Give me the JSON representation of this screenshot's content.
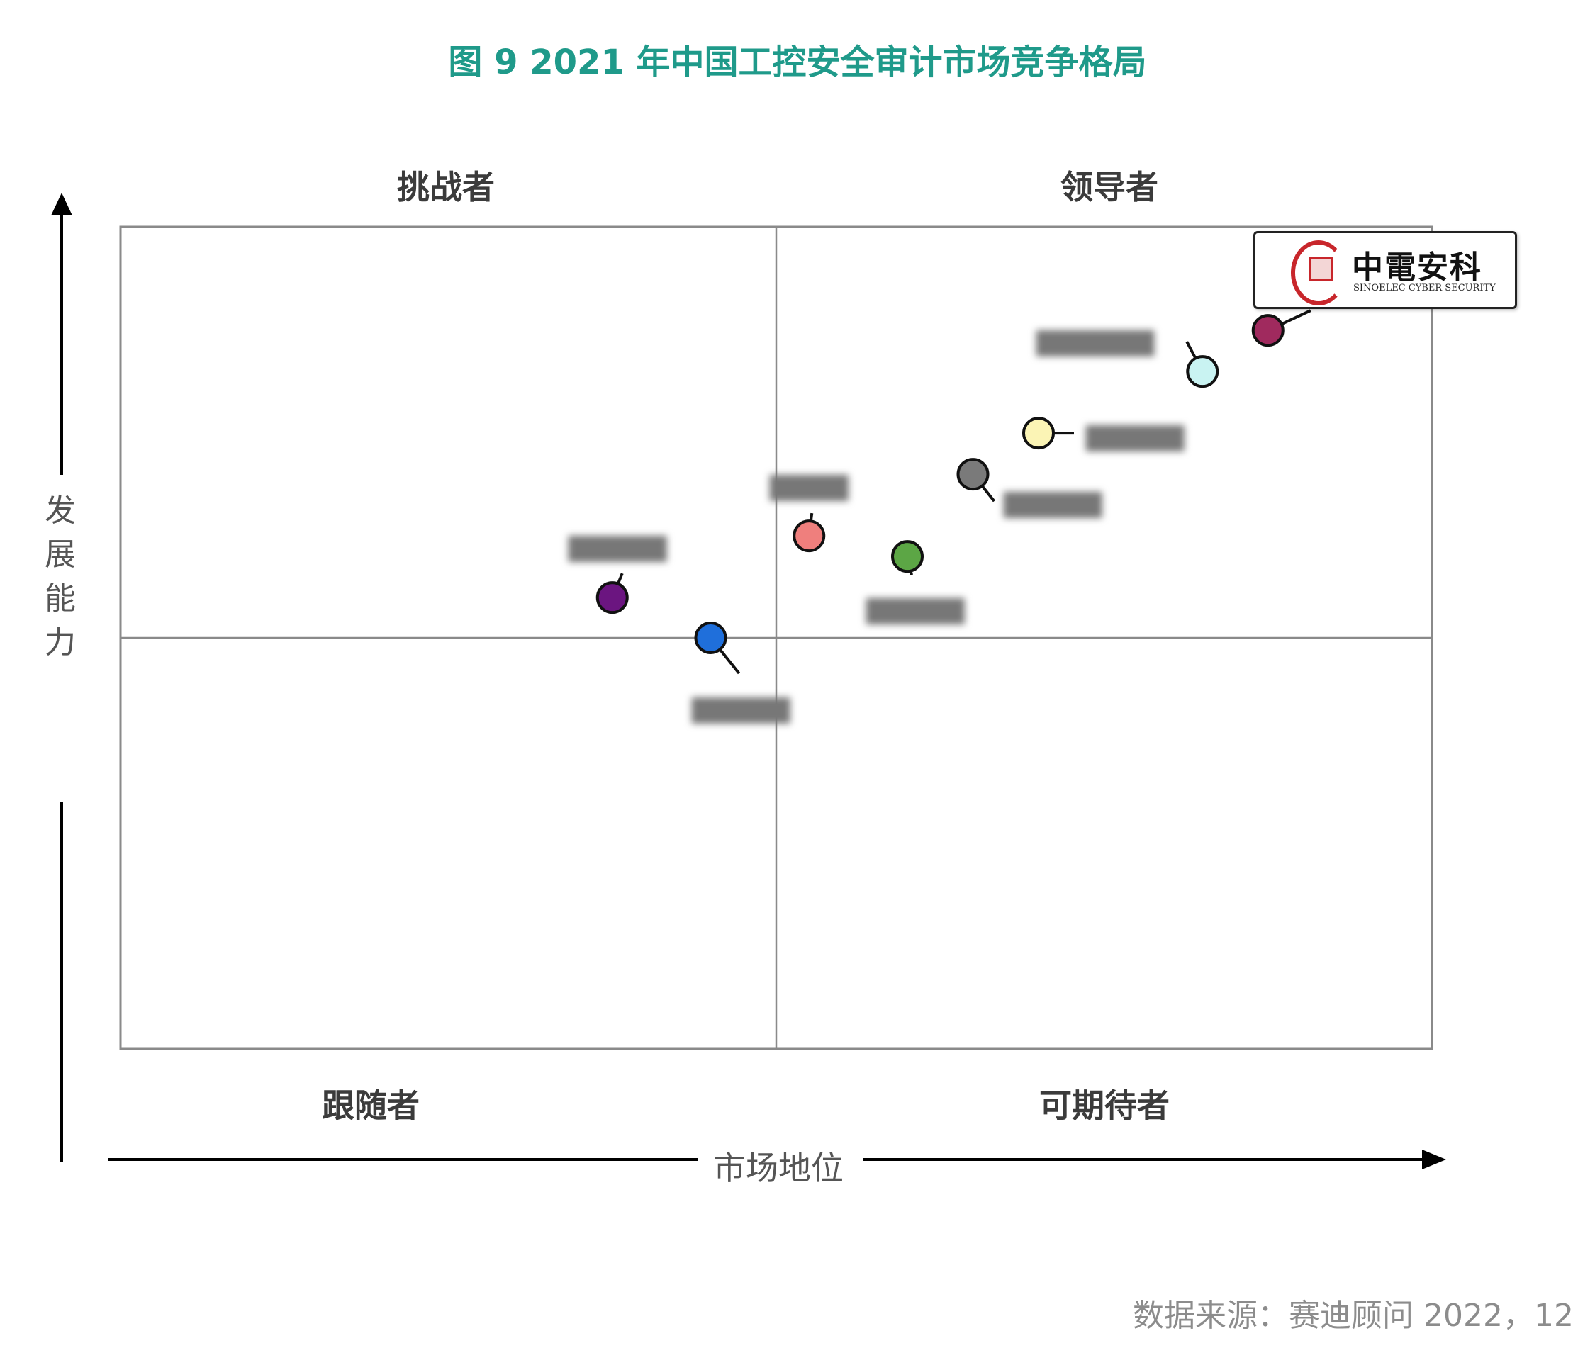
{
  "title": "图 9  2021 年中国工控安全审计市场竞争格局",
  "quadrants": {
    "top_left": "挑战者",
    "top_right": "领导者",
    "bottom_left": "跟随者",
    "bottom_right": "可期待者"
  },
  "y_axis_label": [
    "发",
    "展",
    "能",
    "力"
  ],
  "x_axis_label": "市场地位",
  "source": "数据来源：赛迪顾问  2022，12",
  "highlight": {
    "name_cn": "中電安科",
    "name_en": "SINOELEC CYBER SECURITY"
  },
  "chart_data": {
    "type": "scatter",
    "x_label": "市场地位",
    "y_label": "发展能力",
    "xlim": [
      0,
      100
    ],
    "ylim": [
      0,
      100
    ],
    "divider": {
      "x": 50,
      "y": 50
    },
    "points": [
      {
        "label": "中電安科",
        "x": 87.5,
        "y": 87.4,
        "color": "#a02a5e"
      },
      {
        "label": "",
        "x": 82.5,
        "y": 82.4,
        "color": "#c9f3f2"
      },
      {
        "label": "",
        "x": 70.0,
        "y": 74.9,
        "color": "#fbf4b5"
      },
      {
        "label": "",
        "x": 65.0,
        "y": 69.9,
        "color": "#7a7a7a"
      },
      {
        "label": "",
        "x": 60.0,
        "y": 59.9,
        "color": "#5ca645"
      },
      {
        "label": "",
        "x": 52.5,
        "y": 62.4,
        "color": "#ef7f7d"
      },
      {
        "label": "",
        "x": 37.5,
        "y": 54.9,
        "color": "#6b1580"
      },
      {
        "label": "",
        "x": 45.0,
        "y": 50.0,
        "color": "#1f6fdb"
      }
    ]
  }
}
